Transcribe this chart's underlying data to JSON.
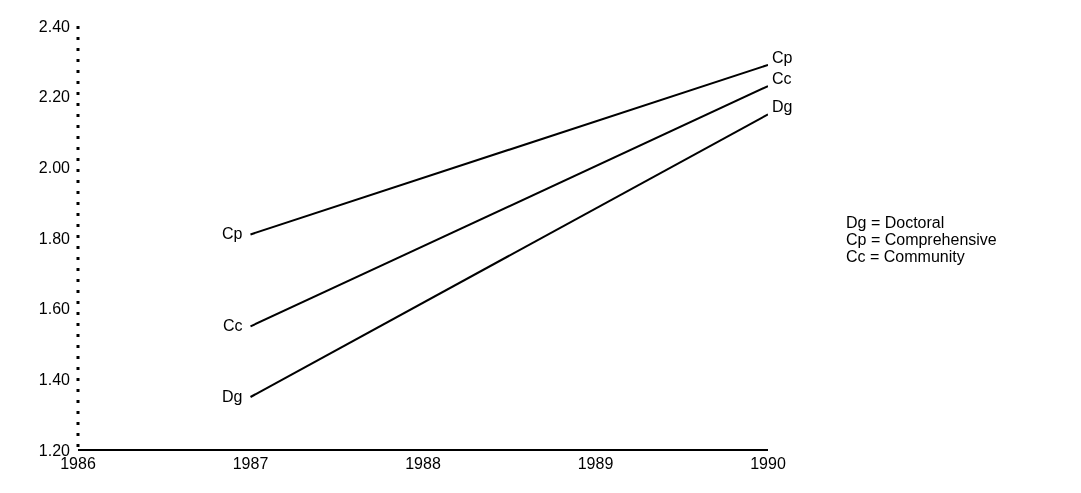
{
  "chart_data": {
    "type": "line",
    "x": [
      1987,
      1990
    ],
    "series": [
      {
        "name": "Cp",
        "color": "#000000",
        "values": [
          1.81,
          2.29
        ]
      },
      {
        "name": "Cc",
        "color": "#000000",
        "values": [
          1.55,
          2.23
        ]
      },
      {
        "name": "Dg",
        "color": "#000000",
        "values": [
          1.35,
          2.15
        ]
      }
    ],
    "xlim": [
      1986,
      1990
    ],
    "xticks": [
      1986,
      1987,
      1988,
      1989,
      1990
    ],
    "ylim": [
      1.2,
      2.4
    ],
    "yticks": [
      {
        "value": 1.2,
        "label": "1.20"
      },
      {
        "value": 1.4,
        "label": "1.40"
      },
      {
        "value": 1.6,
        "label": "1.60"
      },
      {
        "value": 1.8,
        "label": "1.80"
      },
      {
        "value": 2.0,
        "label": "2.00"
      },
      {
        "value": 2.2,
        "label": "2.20"
      },
      {
        "value": 2.4,
        "label": "2.40"
      }
    ],
    "annotations": [
      "Dg = Doctoral",
      "Cp = Comprehensive",
      "Cc = Community"
    ],
    "grid": false,
    "legend": false,
    "marker": "none",
    "line_style": "solid"
  }
}
